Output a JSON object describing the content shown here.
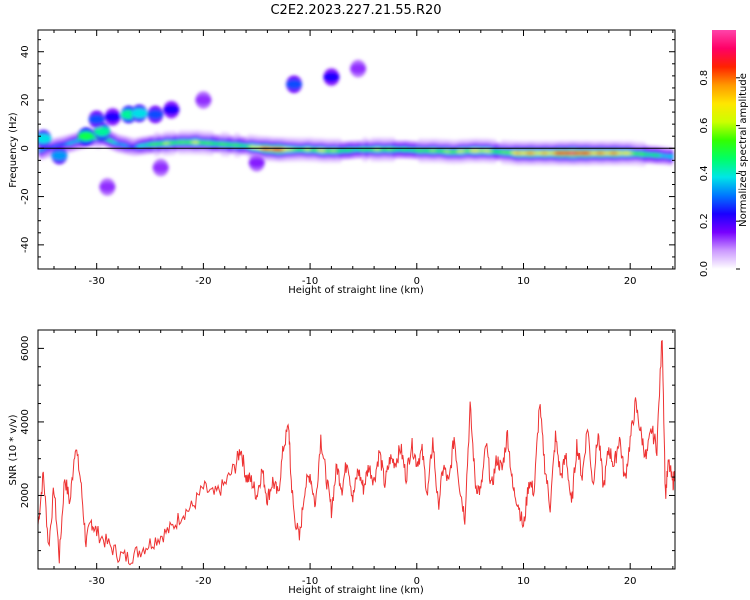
{
  "figure": {
    "title": "C2E2.2023.227.21.55.R20"
  },
  "chart_data": [
    {
      "type": "heatmap",
      "name": "spectrogram",
      "xlabel": "Height of straight line (km)",
      "ylabel": "Frequency (Hz)",
      "xlim": [
        -35.5,
        24.2
      ],
      "ylim": [
        -50,
        49
      ],
      "xticks": [
        -30,
        -20,
        -10,
        0,
        10,
        20
      ],
      "yticks": [
        -40,
        -20,
        0,
        20,
        40
      ],
      "grid": false,
      "horizontal_reference_line_y": 0,
      "colorbar": {
        "label": "Normalized spectral amplitude",
        "range": [
          0.0,
          1.0
        ],
        "ticks": [
          0.0,
          0.2,
          0.4,
          0.6,
          0.8
        ],
        "tick_labels": [
          "0.0",
          "0.2",
          "0.4",
          "0.6",
          "0.8"
        ],
        "colormap": [
          "#ffffff",
          "#cc99ff",
          "#7700ff",
          "#1a00ff",
          "#0077ff",
          "#00e6e6",
          "#00ff66",
          "#33ff00",
          "#ccff00",
          "#ffe600",
          "#ff9900",
          "#ff2200",
          "#ff0066",
          "#ff44aa"
        ]
      },
      "main_band": {
        "x": [
          -35.2,
          -34,
          -32.5,
          -31,
          -29.5,
          -28,
          -26.5,
          -25,
          -23.5,
          -22,
          -20.5,
          -19,
          -17.5,
          -16,
          -14.5,
          -13,
          -11.5,
          -10,
          -8.5,
          -7,
          -5.5,
          -4,
          -2.5,
          -1,
          0.5,
          2,
          3.5,
          5,
          6.5,
          8,
          9.5,
          11,
          12.5,
          14,
          15.5,
          17,
          18.5,
          20,
          21.5,
          23,
          24
        ],
        "freq": [
          -1,
          0.5,
          2,
          4,
          5,
          2,
          0.5,
          1.5,
          2,
          2.5,
          2.5,
          2,
          1.5,
          1,
          0,
          -0.5,
          -0.5,
          -0.5,
          -1,
          -1,
          -0.5,
          -0.5,
          -0.5,
          -0.5,
          -1,
          -1,
          -1.5,
          -1,
          -1,
          -1.5,
          -2,
          -2,
          -2,
          -2,
          -2,
          -2,
          -2,
          -2,
          -2.5,
          -3,
          -3.5
        ],
        "amplitude": [
          0.35,
          0.3,
          0.4,
          0.5,
          0.55,
          0.45,
          0.3,
          0.5,
          0.7,
          0.55,
          0.65,
          0.6,
          0.55,
          0.5,
          0.9,
          0.95,
          0.6,
          0.7,
          0.65,
          0.55,
          0.55,
          0.6,
          0.6,
          0.55,
          0.55,
          0.6,
          0.7,
          0.65,
          0.7,
          0.6,
          0.75,
          0.8,
          0.85,
          0.95,
          0.95,
          0.9,
          0.8,
          0.7,
          0.6,
          0.45,
          0.35
        ]
      },
      "blobs": [
        {
          "x": -35,
          "y": 4,
          "amplitude": 0.3
        },
        {
          "x": -33.5,
          "y": -3,
          "amplitude": 0.25
        },
        {
          "x": -31,
          "y": 5,
          "amplitude": 0.4
        },
        {
          "x": -29.5,
          "y": 7,
          "amplitude": 0.35
        },
        {
          "x": -30,
          "y": 12,
          "amplitude": 0.2
        },
        {
          "x": -28.5,
          "y": 13,
          "amplitude": 0.15
        },
        {
          "x": -27,
          "y": 14,
          "amplitude": 0.35
        },
        {
          "x": -26,
          "y": 14.5,
          "amplitude": 0.3
        },
        {
          "x": -24.5,
          "y": 14,
          "amplitude": 0.2
        },
        {
          "x": -23,
          "y": 16,
          "amplitude": 0.15
        },
        {
          "x": -11.5,
          "y": 26.5,
          "amplitude": 0.2
        },
        {
          "x": -8,
          "y": 29.5,
          "amplitude": 0.15
        },
        {
          "x": -20,
          "y": 20,
          "amplitude": 0.05
        },
        {
          "x": -5.5,
          "y": 33,
          "amplitude": 0.05
        },
        {
          "x": -29,
          "y": -16,
          "amplitude": 0.05
        },
        {
          "x": -24,
          "y": -8,
          "amplitude": 0.05
        },
        {
          "x": -15,
          "y": -6,
          "amplitude": 0.06
        }
      ]
    },
    {
      "type": "line",
      "name": "snr",
      "xlabel": "Height of straight line (km)",
      "ylabel": "SNR (10 * v/v)",
      "xlim": [
        -35.5,
        24.2
      ],
      "ylim": [
        0,
        6500
      ],
      "xticks": [
        -30,
        -20,
        -10,
        0,
        10,
        20
      ],
      "yticks": [
        2000,
        4000,
        6000
      ],
      "grid": false,
      "color": "#ee3333",
      "x": [
        -35.5,
        -35,
        -34.5,
        -34,
        -33.5,
        -33,
        -32.5,
        -32,
        -31.5,
        -31,
        -30.5,
        -30,
        -29,
        -28,
        -27,
        -26,
        -25,
        -24,
        -23,
        -22,
        -21,
        -20,
        -19,
        -18,
        -17,
        -16.5,
        -16,
        -15.5,
        -15,
        -14.5,
        -14,
        -13.5,
        -13,
        -12.5,
        -12,
        -11.8,
        -11.5,
        -11,
        -10.5,
        -10,
        -9.5,
        -9,
        -8.5,
        -8,
        -7.5,
        -7,
        -6.5,
        -6,
        -5.5,
        -5,
        -4.5,
        -4,
        -3.5,
        -3,
        -2.5,
        -2,
        -1.5,
        -1,
        -0.5,
        0,
        0.5,
        1,
        1.5,
        2,
        2.5,
        3,
        3.5,
        4,
        4.5,
        5,
        5.5,
        6,
        6.5,
        7,
        7.5,
        8,
        8.5,
        9,
        9.5,
        10,
        10.5,
        11,
        11.5,
        12,
        12.5,
        13,
        13.5,
        14,
        14.5,
        15,
        15.5,
        16,
        16.5,
        17,
        17.5,
        18,
        18.5,
        19,
        19.5,
        20,
        20.5,
        21,
        21.5,
        22,
        22.5,
        23,
        23.3,
        23.6,
        24,
        24.2
      ],
      "y": [
        1200,
        2600,
        600,
        2200,
        300,
        2500,
        1800,
        3400,
        2400,
        700,
        1300,
        1000,
        700,
        400,
        300,
        500,
        700,
        900,
        1100,
        1500,
        1700,
        2200,
        2000,
        2300,
        2800,
        3300,
        2500,
        2400,
        2000,
        2700,
        1900,
        2400,
        2000,
        3300,
        3900,
        2500,
        1500,
        800,
        2200,
        2600,
        1700,
        3600,
        2500,
        1600,
        2800,
        2200,
        3000,
        1900,
        2700,
        2200,
        2800,
        2400,
        3200,
        2300,
        3000,
        2900,
        3300,
        2500,
        3400,
        2900,
        3200,
        2000,
        3500,
        1700,
        2800,
        2300,
        3600,
        2300,
        1400,
        4400,
        2300,
        2100,
        3400,
        2200,
        3000,
        2700,
        3700,
        2200,
        1800,
        1100,
        2400,
        2100,
        4500,
        2800,
        1700,
        3600,
        2500,
        3100,
        1700,
        3400,
        2500,
        3900,
        2300,
        3700,
        2200,
        3300,
        2800,
        3600,
        2400,
        3500,
        4500,
        3700,
        3000,
        3800,
        3300,
        6400,
        2000,
        2900,
        2300,
        2700
      ]
    }
  ]
}
